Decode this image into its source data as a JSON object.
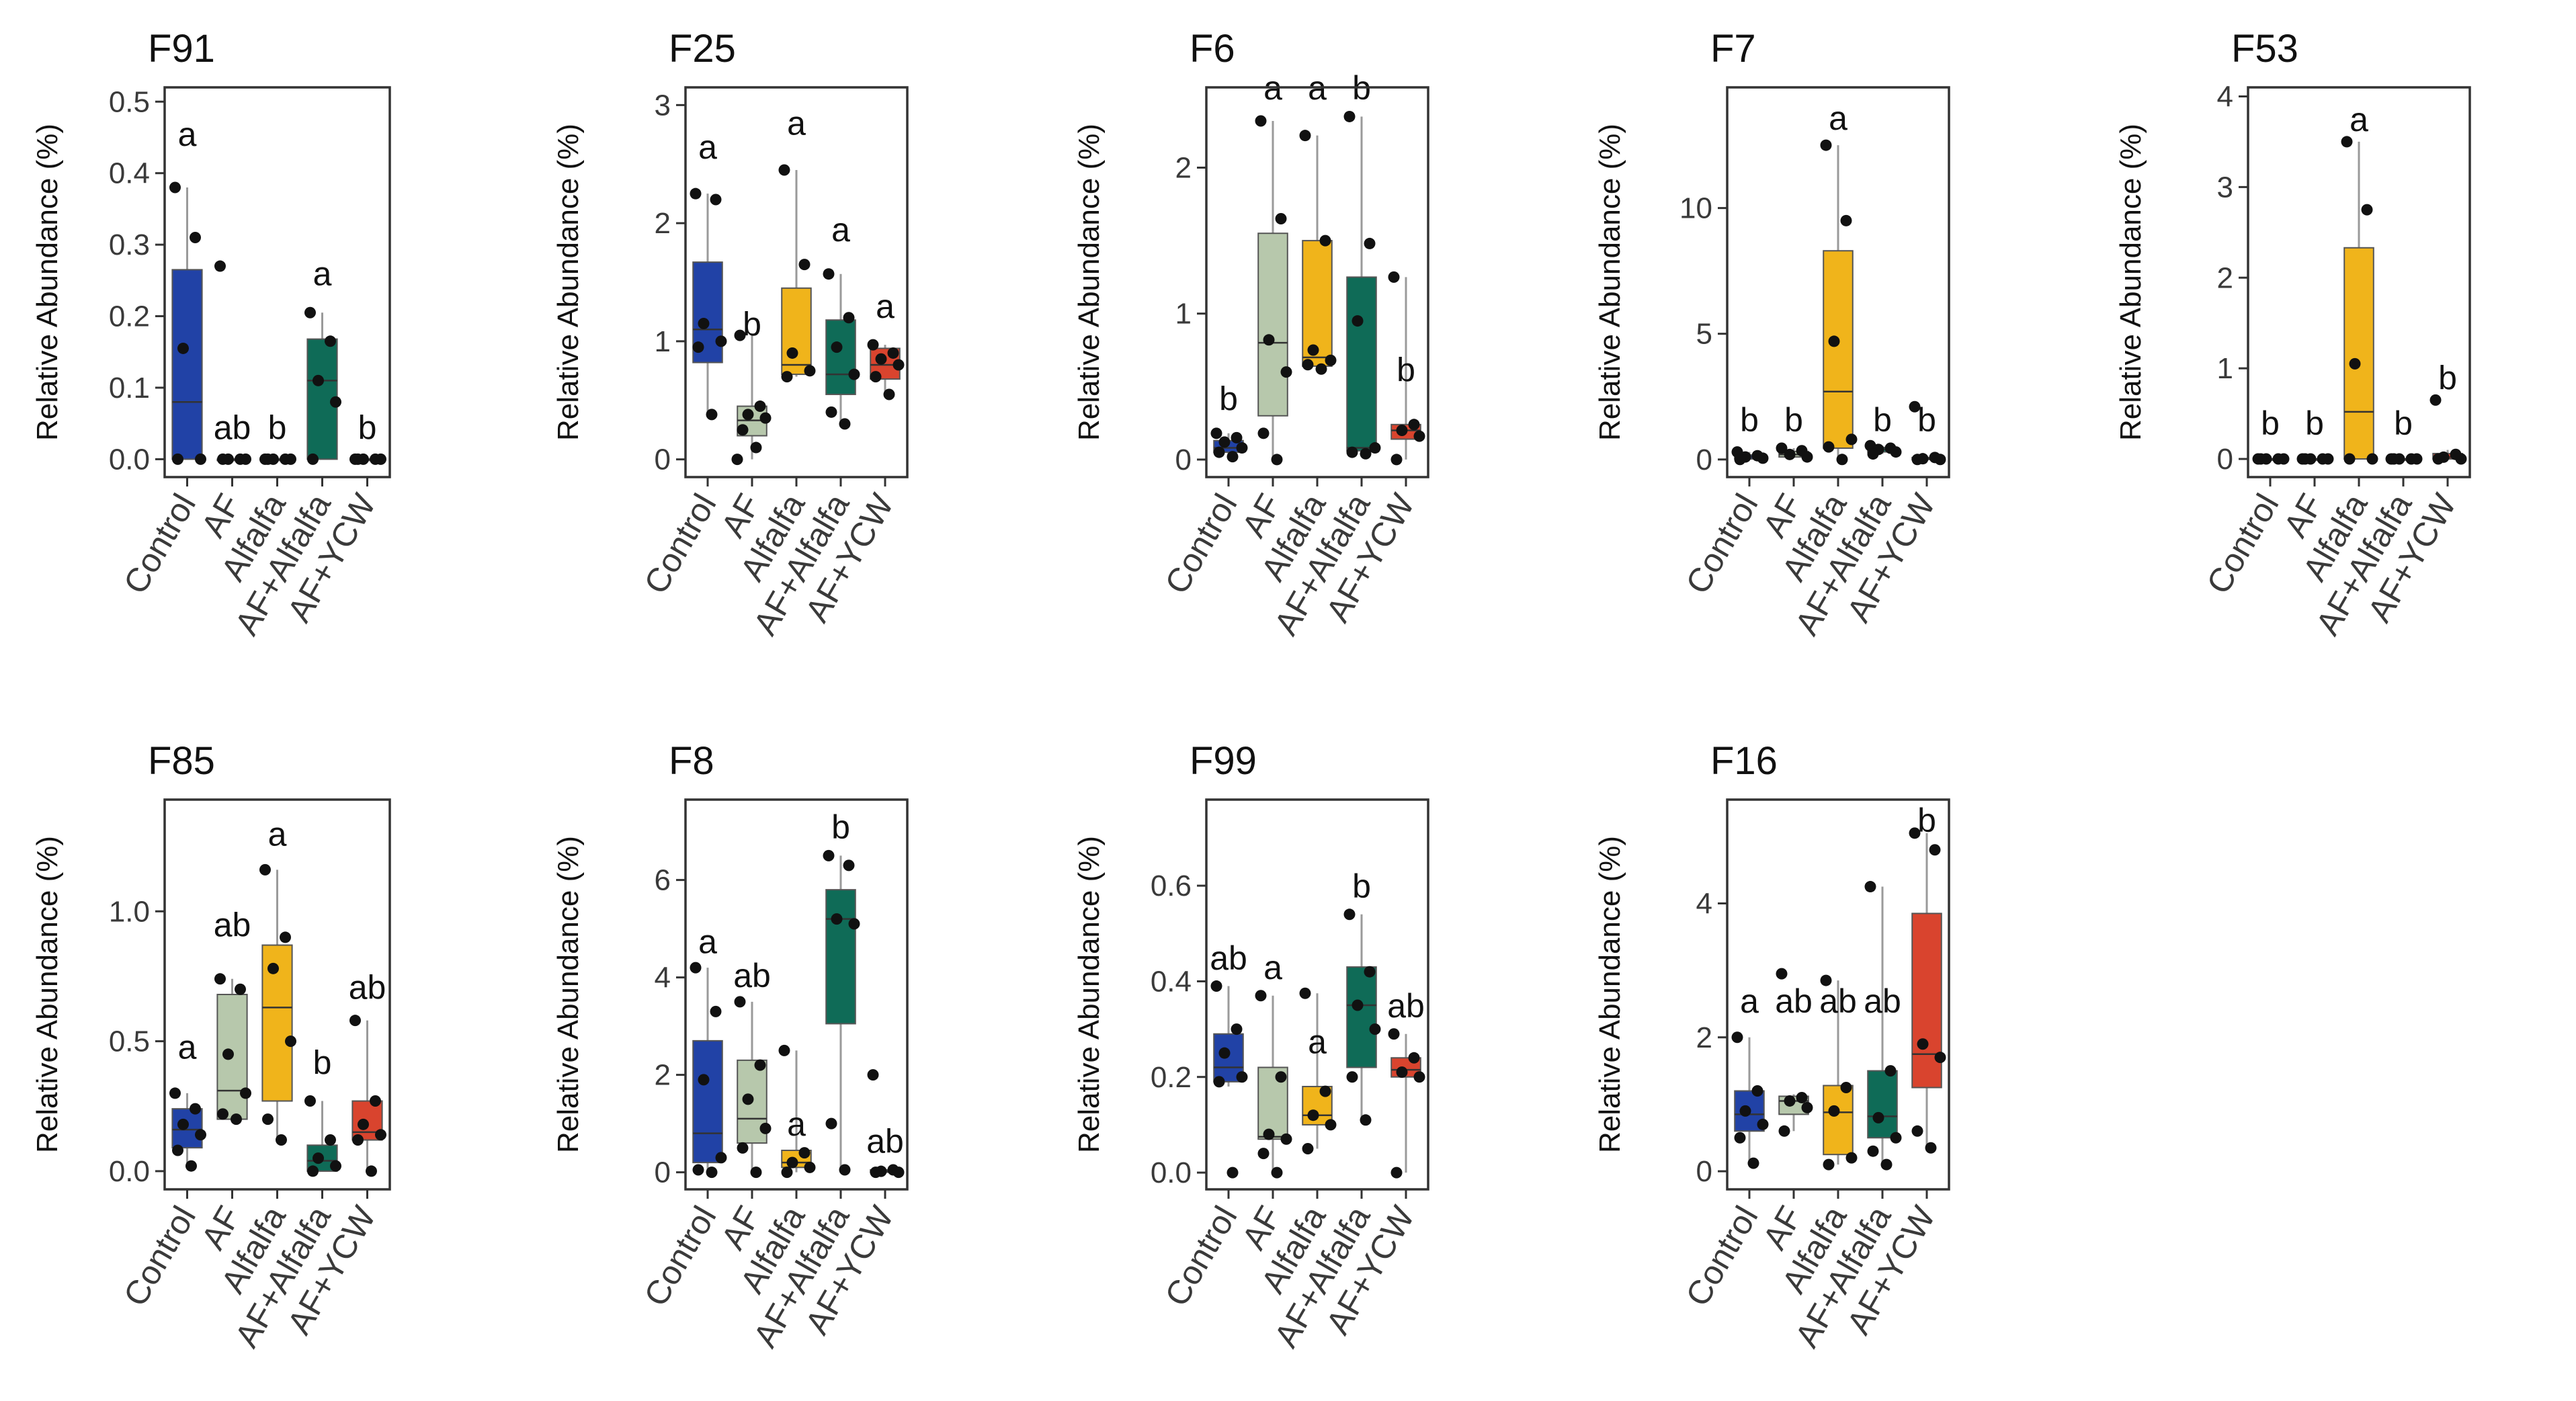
{
  "chart_data": {
    "type": "box",
    "groups": [
      "Control",
      "AF",
      "Alfalfa",
      "AF+Alfalfa",
      "AF+YCW"
    ],
    "colors": {
      "Control": "#2142a6",
      "AF": "#b7c8ac",
      "Alfalfa": "#f0b41b",
      "AF+Alfalfa": "#0f6b57",
      "AF+YCW": "#d9442e"
    },
    "ylabel": "Relative Abundance (%)",
    "panels": [
      {
        "id": "F91",
        "title": "F91",
        "ylim": [
          -0.025,
          0.52
        ],
        "yticks": [
          0.0,
          0.1,
          0.2,
          0.3,
          0.4,
          0.5
        ],
        "ytick_labels": [
          "0.0",
          "0.1",
          "0.2",
          "0.3",
          "0.4",
          "0.5"
        ],
        "boxes": [
          {
            "q1": 0.0,
            "median": 0.08,
            "q3": 0.265,
            "lower": 0.0,
            "upper": 0.38
          },
          {
            "q1": 0.0,
            "median": 0.0,
            "q3": 0.0,
            "lower": 0.0,
            "upper": 0.0
          },
          {
            "q1": 0.0,
            "median": 0.0,
            "q3": 0.0,
            "lower": 0.0,
            "upper": 0.0
          },
          {
            "q1": 0.0,
            "median": 0.11,
            "q3": 0.168,
            "lower": 0.0,
            "upper": 0.205
          },
          {
            "q1": 0.0,
            "median": 0.0,
            "q3": 0.0,
            "lower": 0.0,
            "upper": 0.0
          }
        ],
        "points": [
          [
            0.38,
            0.31,
            0.155,
            0.0,
            0.0
          ],
          [
            0.27,
            0.0,
            0.0,
            0.0,
            0.0
          ],
          [
            0.0,
            0.0,
            0.0,
            0.0,
            0.0
          ],
          [
            0.205,
            0.165,
            0.11,
            0.08,
            0.0
          ],
          [
            0.0,
            0.0,
            0.0,
            0.0,
            0.0
          ]
        ],
        "letters": [
          "a",
          "ab",
          "b",
          "a",
          "b"
        ],
        "letter_y": [
          0.455,
          0.045,
          0.045,
          0.26,
          0.045
        ]
      },
      {
        "id": "F25",
        "title": "F25",
        "ylim": [
          -0.15,
          3.15
        ],
        "yticks": [
          0,
          1,
          2,
          3
        ],
        "ytick_labels": [
          "0",
          "1",
          "2",
          "3"
        ],
        "boxes": [
          {
            "q1": 0.82,
            "median": 1.1,
            "q3": 1.67,
            "lower": 0.38,
            "upper": 2.25
          },
          {
            "q1": 0.2,
            "median": 0.33,
            "q3": 0.45,
            "lower": 0.0,
            "upper": 1.05
          },
          {
            "q1": 0.72,
            "median": 0.8,
            "q3": 1.45,
            "lower": 0.7,
            "upper": 2.45
          },
          {
            "q1": 0.55,
            "median": 0.72,
            "q3": 1.18,
            "lower": 0.3,
            "upper": 1.57
          },
          {
            "q1": 0.68,
            "median": 0.8,
            "q3": 0.94,
            "lower": 0.55,
            "upper": 0.97
          }
        ],
        "points": [
          [
            2.25,
            2.2,
            1.15,
            1.0,
            0.95,
            0.38
          ],
          [
            1.05,
            0.45,
            0.38,
            0.35,
            0.25,
            0.1,
            0.0
          ],
          [
            2.45,
            1.65,
            0.9,
            0.75,
            0.7
          ],
          [
            1.57,
            1.2,
            0.95,
            0.72,
            0.4,
            0.3
          ],
          [
            0.97,
            0.9,
            0.85,
            0.8,
            0.7,
            0.55
          ]
        ],
        "letters": [
          "a",
          "b",
          "a",
          "a",
          "a"
        ],
        "letter_y": [
          2.65,
          1.15,
          2.85,
          1.95,
          1.3
        ]
      },
      {
        "id": "F6",
        "title": "F6",
        "ylim": [
          -0.12,
          2.55
        ],
        "yticks": [
          0,
          1,
          2
        ],
        "ytick_labels": [
          "0",
          "1",
          "2"
        ],
        "boxes": [
          {
            "q1": 0.05,
            "median": 0.08,
            "q3": 0.13,
            "lower": 0.0,
            "upper": 0.18
          },
          {
            "q1": 0.3,
            "median": 0.8,
            "q3": 1.55,
            "lower": 0.0,
            "upper": 2.32
          },
          {
            "q1": 0.64,
            "median": 0.7,
            "q3": 1.5,
            "lower": 0.62,
            "upper": 2.22
          },
          {
            "q1": 0.06,
            "median": 0.08,
            "q3": 1.25,
            "lower": 0.04,
            "upper": 2.35
          },
          {
            "q1": 0.14,
            "median": 0.2,
            "q3": 0.24,
            "lower": 0.0,
            "upper": 1.25
          }
        ],
        "points": [
          [
            0.18,
            0.15,
            0.12,
            0.08,
            0.05,
            0.02
          ],
          [
            2.32,
            1.65,
            0.82,
            0.6,
            0.18,
            0.0
          ],
          [
            2.22,
            1.5,
            0.75,
            0.68,
            0.65,
            0.62
          ],
          [
            2.35,
            1.48,
            0.95,
            0.08,
            0.05,
            0.04
          ],
          [
            1.25,
            0.24,
            0.2,
            0.16,
            0.0
          ]
        ],
        "letters": [
          "b",
          "a",
          "a",
          "b",
          "b"
        ],
        "letter_y": [
          0.42,
          2.55,
          2.55,
          2.55,
          0.62
        ]
      },
      {
        "id": "F7",
        "title": "F7",
        "ylim": [
          -0.7,
          14.8
        ],
        "yticks": [
          0,
          5,
          10
        ],
        "ytick_labels": [
          "0",
          "5",
          "10"
        ],
        "boxes": [
          {
            "q1": 0.02,
            "median": 0.1,
            "q3": 0.18,
            "lower": 0.0,
            "upper": 0.3
          },
          {
            "q1": 0.1,
            "median": 0.2,
            "q3": 0.32,
            "lower": 0.05,
            "upper": 0.45
          },
          {
            "q1": 0.45,
            "median": 2.7,
            "q3": 8.3,
            "lower": 0.0,
            "upper": 12.5
          },
          {
            "q1": 0.3,
            "median": 0.4,
            "q3": 0.48,
            "lower": 0.22,
            "upper": 0.55
          },
          {
            "q1": 0.0,
            "median": 0.03,
            "q3": 0.08,
            "lower": 0.0,
            "upper": 0.12
          }
        ],
        "points": [
          [
            0.3,
            0.15,
            0.1,
            0.05,
            0.0
          ],
          [
            0.45,
            0.35,
            0.2,
            0.1
          ],
          [
            12.5,
            9.5,
            4.7,
            0.8,
            0.5,
            0.0
          ],
          [
            0.55,
            0.45,
            0.4,
            0.3,
            0.22
          ],
          [
            2.1,
            0.08,
            0.03,
            0.0,
            0.0
          ]
        ],
        "letters": [
          "b",
          "b",
          "a",
          "b",
          "b"
        ],
        "letter_y": [
          1.6,
          1.6,
          13.6,
          1.6,
          1.6
        ]
      },
      {
        "id": "F53",
        "title": "F53",
        "ylim": [
          -0.2,
          4.1
        ],
        "yticks": [
          0,
          1,
          2,
          3,
          4
        ],
        "ytick_labels": [
          "0",
          "1",
          "2",
          "3",
          "4"
        ],
        "boxes": [
          {
            "q1": 0.0,
            "median": 0.0,
            "q3": 0.0,
            "lower": 0.0,
            "upper": 0.0
          },
          {
            "q1": 0.0,
            "median": 0.0,
            "q3": 0.0,
            "lower": 0.0,
            "upper": 0.0
          },
          {
            "q1": 0.0,
            "median": 0.52,
            "q3": 2.33,
            "lower": 0.0,
            "upper": 3.5
          },
          {
            "q1": 0.0,
            "median": 0.0,
            "q3": 0.0,
            "lower": 0.0,
            "upper": 0.0
          },
          {
            "q1": 0.0,
            "median": 0.02,
            "q3": 0.06,
            "lower": 0.0,
            "upper": 0.1
          }
        ],
        "points": [
          [
            0.0,
            0.0,
            0.0,
            0.0,
            0.0
          ],
          [
            0.0,
            0.0,
            0.0,
            0.0,
            0.0
          ],
          [
            3.5,
            2.75,
            1.05,
            0.0,
            0.0
          ],
          [
            0.0,
            0.0,
            0.0,
            0.0,
            0.0
          ],
          [
            0.65,
            0.05,
            0.02,
            0.0,
            0.0
          ]
        ],
        "letters": [
          "b",
          "b",
          "a",
          "b",
          "b"
        ],
        "letter_y": [
          0.4,
          0.4,
          3.75,
          0.4,
          0.9
        ]
      },
      {
        "id": "F85",
        "title": "F85",
        "ylim": [
          -0.07,
          1.43
        ],
        "yticks": [
          0.0,
          0.5,
          1.0
        ],
        "ytick_labels": [
          "0.0",
          "0.5",
          "1.0"
        ],
        "boxes": [
          {
            "q1": 0.09,
            "median": 0.16,
            "q3": 0.24,
            "lower": 0.02,
            "upper": 0.3
          },
          {
            "q1": 0.2,
            "median": 0.31,
            "q3": 0.68,
            "lower": 0.2,
            "upper": 0.74
          },
          {
            "q1": 0.27,
            "median": 0.63,
            "q3": 0.87,
            "lower": 0.12,
            "upper": 1.16
          },
          {
            "q1": 0.0,
            "median": 0.04,
            "q3": 0.1,
            "lower": 0.0,
            "upper": 0.27
          },
          {
            "q1": 0.12,
            "median": 0.15,
            "q3": 0.27,
            "lower": 0.0,
            "upper": 0.58
          }
        ],
        "points": [
          [
            0.3,
            0.24,
            0.18,
            0.14,
            0.08,
            0.02
          ],
          [
            0.74,
            0.7,
            0.45,
            0.3,
            0.22,
            0.2
          ],
          [
            1.16,
            0.9,
            0.78,
            0.5,
            0.2,
            0.12
          ],
          [
            0.27,
            0.12,
            0.05,
            0.02,
            0.0
          ],
          [
            0.58,
            0.27,
            0.18,
            0.14,
            0.12,
            0.0
          ]
        ],
        "letters": [
          "a",
          "ab",
          "a",
          "b",
          "ab"
        ],
        "letter_y": [
          0.48,
          0.95,
          1.3,
          0.42,
          0.71
        ]
      },
      {
        "id": "F8",
        "title": "F8",
        "ylim": [
          -0.35,
          7.65
        ],
        "yticks": [
          0,
          2,
          4,
          6
        ],
        "ytick_labels": [
          "0",
          "2",
          "4",
          "6"
        ],
        "boxes": [
          {
            "q1": 0.2,
            "median": 0.8,
            "q3": 2.7,
            "lower": 0.0,
            "upper": 4.2
          },
          {
            "q1": 0.6,
            "median": 1.1,
            "q3": 2.3,
            "lower": 0.0,
            "upper": 3.5
          },
          {
            "q1": 0.1,
            "median": 0.2,
            "q3": 0.45,
            "lower": 0.0,
            "upper": 2.5
          },
          {
            "q1": 3.05,
            "median": 5.2,
            "q3": 5.8,
            "lower": 0.05,
            "upper": 6.5
          },
          {
            "q1": 0.0,
            "median": 0.02,
            "q3": 0.05,
            "lower": 0.0,
            "upper": 0.08
          }
        ],
        "points": [
          [
            4.2,
            3.3,
            1.9,
            0.3,
            0.05,
            0.0
          ],
          [
            3.5,
            2.2,
            1.5,
            0.9,
            0.5,
            0.0
          ],
          [
            2.5,
            0.4,
            0.2,
            0.1,
            0.0
          ],
          [
            6.5,
            6.3,
            5.2,
            5.1,
            1.0,
            0.05
          ],
          [
            2.0,
            0.05,
            0.02,
            0.0,
            0.0
          ]
        ],
        "letters": [
          "a",
          "ab",
          "a",
          "b",
          "ab"
        ],
        "letter_y": [
          4.75,
          4.05,
          1.0,
          7.1,
          0.65
        ]
      },
      {
        "id": "F99",
        "title": "F99",
        "ylim": [
          -0.035,
          0.78
        ],
        "yticks": [
          0.0,
          0.2,
          0.4,
          0.6
        ],
        "ytick_labels": [
          "0.0",
          "0.2",
          "0.4",
          "0.6"
        ],
        "boxes": [
          {
            "q1": 0.19,
            "median": 0.22,
            "q3": 0.29,
            "lower": 0.18,
            "upper": 0.39
          },
          {
            "q1": 0.07,
            "median": 0.075,
            "q3": 0.22,
            "lower": 0.0,
            "upper": 0.37
          },
          {
            "q1": 0.1,
            "median": 0.12,
            "q3": 0.18,
            "lower": 0.05,
            "upper": 0.375
          },
          {
            "q1": 0.22,
            "median": 0.35,
            "q3": 0.43,
            "lower": 0.11,
            "upper": 0.54
          },
          {
            "q1": 0.2,
            "median": 0.215,
            "q3": 0.24,
            "lower": 0.0,
            "upper": 0.29
          }
        ],
        "points": [
          [
            0.39,
            0.3,
            0.25,
            0.2,
            0.19,
            0.0
          ],
          [
            0.37,
            0.2,
            0.08,
            0.07,
            0.04,
            0.0
          ],
          [
            0.375,
            0.17,
            0.12,
            0.1,
            0.05
          ],
          [
            0.54,
            0.42,
            0.35,
            0.3,
            0.2,
            0.11
          ],
          [
            0.29,
            0.24,
            0.21,
            0.2,
            0.0
          ]
        ],
        "letters": [
          "ab",
          "a",
          "a",
          "b",
          "ab"
        ],
        "letter_y": [
          0.45,
          0.43,
          0.275,
          0.6,
          0.35
        ]
      },
      {
        "id": "F16",
        "title": "F16",
        "ylim": [
          -0.27,
          5.55
        ],
        "yticks": [
          0,
          2,
          4
        ],
        "ytick_labels": [
          "0",
          "2",
          "4"
        ],
        "boxes": [
          {
            "q1": 0.6,
            "median": 0.85,
            "q3": 1.2,
            "lower": 0.12,
            "upper": 2.0
          },
          {
            "q1": 0.85,
            "median": 1.05,
            "q3": 1.12,
            "lower": 0.6,
            "upper": 1.15
          },
          {
            "q1": 0.25,
            "median": 0.88,
            "q3": 1.28,
            "lower": 0.1,
            "upper": 2.85
          },
          {
            "q1": 0.5,
            "median": 0.82,
            "q3": 1.5,
            "lower": 0.1,
            "upper": 4.25
          },
          {
            "q1": 1.25,
            "median": 1.75,
            "q3": 3.85,
            "lower": 0.35,
            "upper": 5.05
          }
        ],
        "points": [
          [
            2.0,
            1.2,
            0.9,
            0.7,
            0.5,
            0.12
          ],
          [
            2.95,
            1.1,
            1.05,
            0.95,
            0.6
          ],
          [
            2.85,
            1.25,
            0.9,
            0.2,
            0.1
          ],
          [
            4.25,
            1.5,
            0.8,
            0.5,
            0.3,
            0.1
          ],
          [
            5.05,
            4.8,
            1.9,
            1.7,
            0.6,
            0.35
          ]
        ],
        "letters": [
          "a",
          "ab",
          "ab",
          "ab",
          "b"
        ],
        "letter_y": [
          2.55,
          2.55,
          2.55,
          2.55,
          5.25
        ]
      }
    ]
  }
}
